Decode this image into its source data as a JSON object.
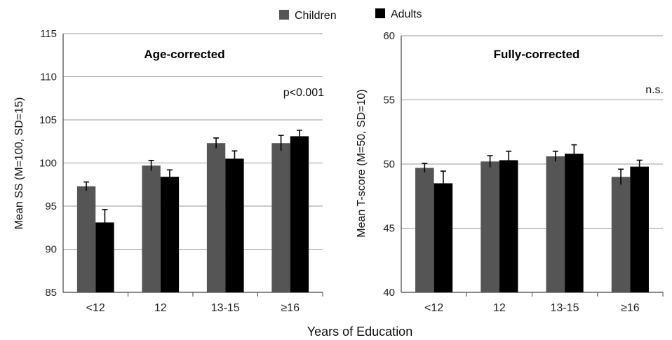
{
  "legend": [
    {
      "name": "Children",
      "color": "#555555"
    },
    {
      "name": "Adults",
      "color": "#000000"
    }
  ],
  "xlabel": "Years of Education",
  "chart_data": [
    {
      "type": "bar",
      "title": "Age-corrected",
      "annotation": "p<0.001",
      "ylabel": "Mean SS (M=100, SD=15)",
      "xlabel": "Years of Education",
      "ylim": [
        85,
        115
      ],
      "yticks": [
        "85",
        "90",
        "95",
        "100",
        "105",
        "110",
        "115"
      ],
      "categories": [
        "<12",
        "12",
        "13-15",
        "≥16"
      ],
      "grid": "horizontal",
      "series": [
        {
          "name": "Children",
          "color": "#555555",
          "values": [
            97.3,
            99.7,
            102.3,
            102.3
          ],
          "errors": [
            0.5,
            0.6,
            0.6,
            0.9
          ]
        },
        {
          "name": "Adults",
          "color": "#000000",
          "values": [
            93.1,
            98.4,
            100.5,
            103.1
          ],
          "errors": [
            1.5,
            0.8,
            0.9,
            0.7
          ]
        }
      ]
    },
    {
      "type": "bar",
      "title": "Fully-corrected",
      "annotation": "n.s.",
      "ylabel": "Mean T-score (M=50, SD=10)",
      "xlabel": "Years of Education",
      "ylim": [
        40,
        60
      ],
      "yticks": [
        "40",
        "45",
        "50",
        "55",
        "60"
      ],
      "categories": [
        "<12",
        "12",
        "13-15",
        "≥16"
      ],
      "grid": "horizontal",
      "series": [
        {
          "name": "Children",
          "color": "#555555",
          "values": [
            49.7,
            50.2,
            50.6,
            49.0
          ],
          "errors": [
            0.35,
            0.45,
            0.4,
            0.6
          ]
        },
        {
          "name": "Adults",
          "color": "#000000",
          "values": [
            48.5,
            50.3,
            50.8,
            49.8
          ],
          "errors": [
            0.95,
            0.7,
            0.7,
            0.5
          ]
        }
      ]
    }
  ]
}
